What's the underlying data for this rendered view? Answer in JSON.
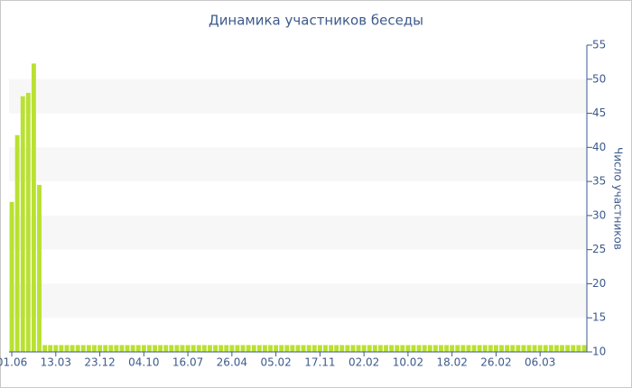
{
  "chart_data": {
    "type": "bar",
    "title": "Динамика участников беседы",
    "y_axis_label": "Число участников",
    "categories": [
      "01.06",
      null,
      null,
      null,
      null,
      null,
      null,
      null,
      "13.03",
      null,
      null,
      null,
      null,
      null,
      null,
      null,
      "23.12",
      null,
      null,
      null,
      null,
      null,
      null,
      null,
      "04.10",
      null,
      null,
      null,
      null,
      null,
      null,
      null,
      "16.07",
      null,
      null,
      null,
      null,
      null,
      null,
      null,
      "26.04",
      null,
      null,
      null,
      null,
      null,
      null,
      null,
      "05.02",
      null,
      null,
      null,
      null,
      null,
      null,
      null,
      "17.11",
      null,
      null,
      null,
      null,
      null,
      null,
      null,
      "02.02",
      null,
      null,
      null,
      null,
      null,
      null,
      null,
      "10.02",
      null,
      null,
      null,
      null,
      null,
      null,
      null,
      "18.02",
      null,
      null,
      null,
      null,
      null,
      null,
      null,
      "26.02",
      null,
      null,
      null,
      null,
      null,
      null,
      null,
      "06.03",
      null,
      null,
      null,
      null,
      null,
      null,
      null,
      null
    ],
    "values": [
      32,
      41.8,
      47.5,
      48,
      52.3,
      34.5,
      11,
      11,
      11,
      11,
      11,
      11,
      11,
      11,
      11,
      11,
      11,
      11,
      11,
      11,
      11,
      11,
      11,
      11,
      11,
      11,
      11,
      11,
      11,
      11,
      11,
      11,
      11,
      11,
      11,
      11,
      11,
      11,
      11,
      11,
      11,
      11,
      11,
      11,
      11,
      11,
      11,
      11,
      11,
      11,
      11,
      11,
      11,
      11,
      11,
      11,
      11,
      11,
      11,
      11,
      11,
      11,
      11,
      11,
      11,
      11,
      11,
      11,
      11,
      11,
      11,
      11,
      11,
      11,
      11,
      11,
      11,
      11,
      11,
      11,
      11,
      11,
      11,
      11,
      11,
      11,
      11,
      11,
      11,
      11,
      11,
      11,
      11,
      11,
      11,
      11,
      11,
      11,
      11,
      11,
      11,
      11,
      11,
      11,
      11
    ],
    "color": "#b9e132",
    "ylim": [
      10,
      55
    ],
    "yticks": [
      10,
      15,
      20,
      25,
      30,
      35,
      40,
      45,
      50,
      55
    ],
    "y_axis_side": "right",
    "bands": true
  }
}
